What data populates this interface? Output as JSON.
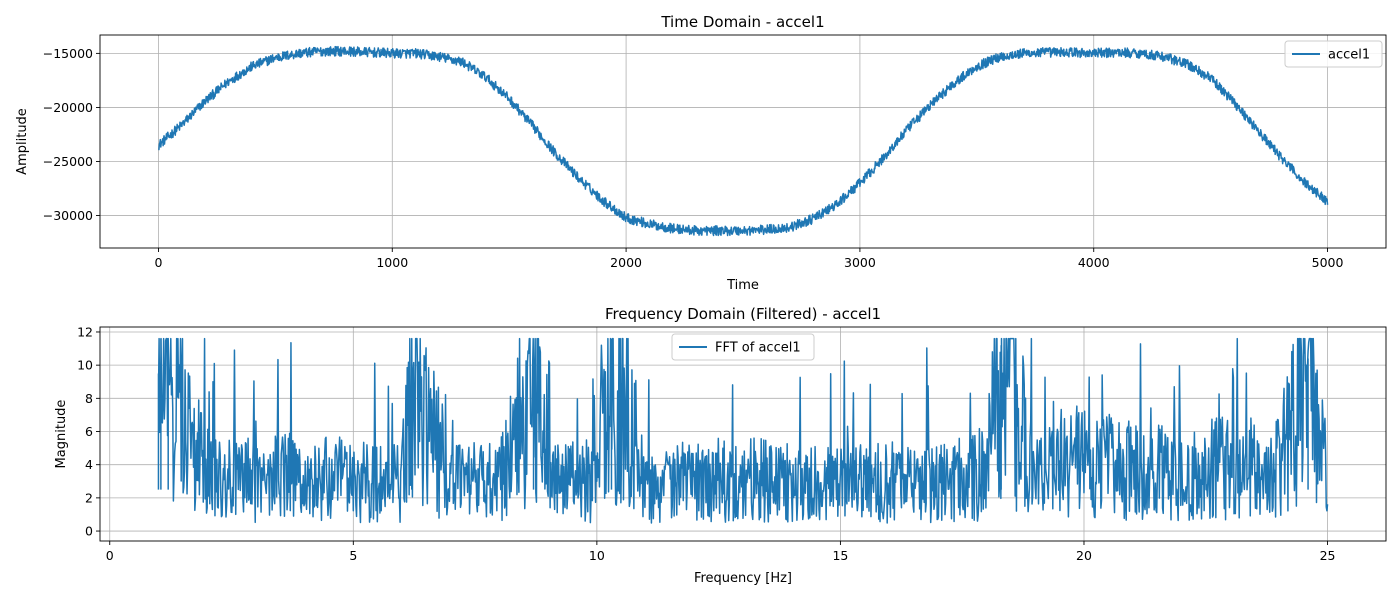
{
  "chart_data": [
    {
      "type": "line",
      "title": "Time Domain - accel1",
      "xlabel": "Time",
      "ylabel": "Amplitude",
      "xlim": [
        -250,
        5250
      ],
      "ylim": [
        -33000,
        -13300
      ],
      "xticks": [
        0,
        1000,
        2000,
        3000,
        4000,
        5000
      ],
      "xtick_labels": [
        "0",
        "1000",
        "2000",
        "3000",
        "4000",
        "5000"
      ],
      "yticks": [
        -30000,
        -25000,
        -20000,
        -15000
      ],
      "ytick_labels": [
        "−30000",
        "−25000",
        "−20000",
        "−15000"
      ],
      "grid": true,
      "legend_position": "top-right",
      "series": [
        {
          "name": "accel1",
          "color": "#1f77b4",
          "x": [
            0,
            100,
            200,
            300,
            400,
            500,
            600,
            700,
            800,
            900,
            1000,
            1100,
            1200,
            1300,
            1400,
            1500,
            1600,
            1700,
            1800,
            1900,
            2000,
            2100,
            2200,
            2300,
            2400,
            2500,
            2600,
            2700,
            2800,
            2900,
            3000,
            3100,
            3200,
            3300,
            3400,
            3500,
            3600,
            3700,
            3800,
            3900,
            4000,
            4100,
            4200,
            4300,
            4400,
            4500,
            4600,
            4700,
            4800,
            4900,
            5000
          ],
          "y": [
            -23500,
            -21600,
            -19400,
            -17600,
            -16200,
            -15400,
            -15000,
            -14800,
            -14800,
            -14900,
            -15000,
            -15000,
            -15300,
            -15800,
            -17200,
            -19200,
            -21700,
            -24300,
            -26600,
            -28600,
            -30200,
            -30800,
            -31200,
            -31400,
            -31400,
            -31400,
            -31300,
            -31100,
            -30300,
            -29000,
            -27000,
            -24700,
            -22100,
            -19800,
            -17800,
            -16200,
            -15300,
            -15000,
            -14900,
            -14900,
            -15000,
            -14900,
            -15000,
            -15300,
            -16000,
            -17300,
            -19500,
            -22100,
            -24600,
            -26900,
            -28700
          ]
        }
      ]
    },
    {
      "type": "line",
      "title": "Frequency Domain (Filtered) - accel1",
      "xlabel": "Frequency [Hz]",
      "ylabel": "Magnitude",
      "xlim": [
        -0.2,
        26.2
      ],
      "ylim": [
        -0.6,
        12.3
      ],
      "xticks": [
        0,
        5,
        10,
        15,
        20,
        25
      ],
      "xtick_labels": [
        "0",
        "5",
        "10",
        "15",
        "20",
        "25"
      ],
      "yticks": [
        0,
        2,
        4,
        6,
        8,
        10,
        12
      ],
      "ytick_labels": [
        "0",
        "2",
        "4",
        "6",
        "8",
        "10",
        "12"
      ],
      "grid": true,
      "legend_position": "top-center",
      "series": [
        {
          "name": "FFT of accel1",
          "color": "#1f77b4",
          "x": [
            1.0,
            1.05,
            1.1,
            1.2,
            1.3,
            1.5,
            1.7,
            2.0,
            2.5,
            3.0,
            3.5,
            4.0,
            4.5,
            5.0,
            5.5,
            6.0,
            6.2,
            7.0,
            8.0,
            8.7,
            9.0,
            10.0,
            10.3,
            11.0,
            12.0,
            13.0,
            14.0,
            15.0,
            16.0,
            17.0,
            18.0,
            18.3,
            19.0,
            20.0,
            21.0,
            22.0,
            23.0,
            24.0,
            24.6,
            25.0
          ],
          "y": [
            9.5,
            11.6,
            8.0,
            10.5,
            6.5,
            8.7,
            5.0,
            4.0,
            3.5,
            3.2,
            3.8,
            3.0,
            3.4,
            3.3,
            3.0,
            3.2,
            9.9,
            3.1,
            3.2,
            9.8,
            3.1,
            3.4,
            11.6,
            3.0,
            3.2,
            3.4,
            3.1,
            3.0,
            3.2,
            3.0,
            3.8,
            11.2,
            3.6,
            4.3,
            4.0,
            3.6,
            4.2,
            4.0,
            10.4,
            3.5
          ]
        }
      ]
    }
  ]
}
